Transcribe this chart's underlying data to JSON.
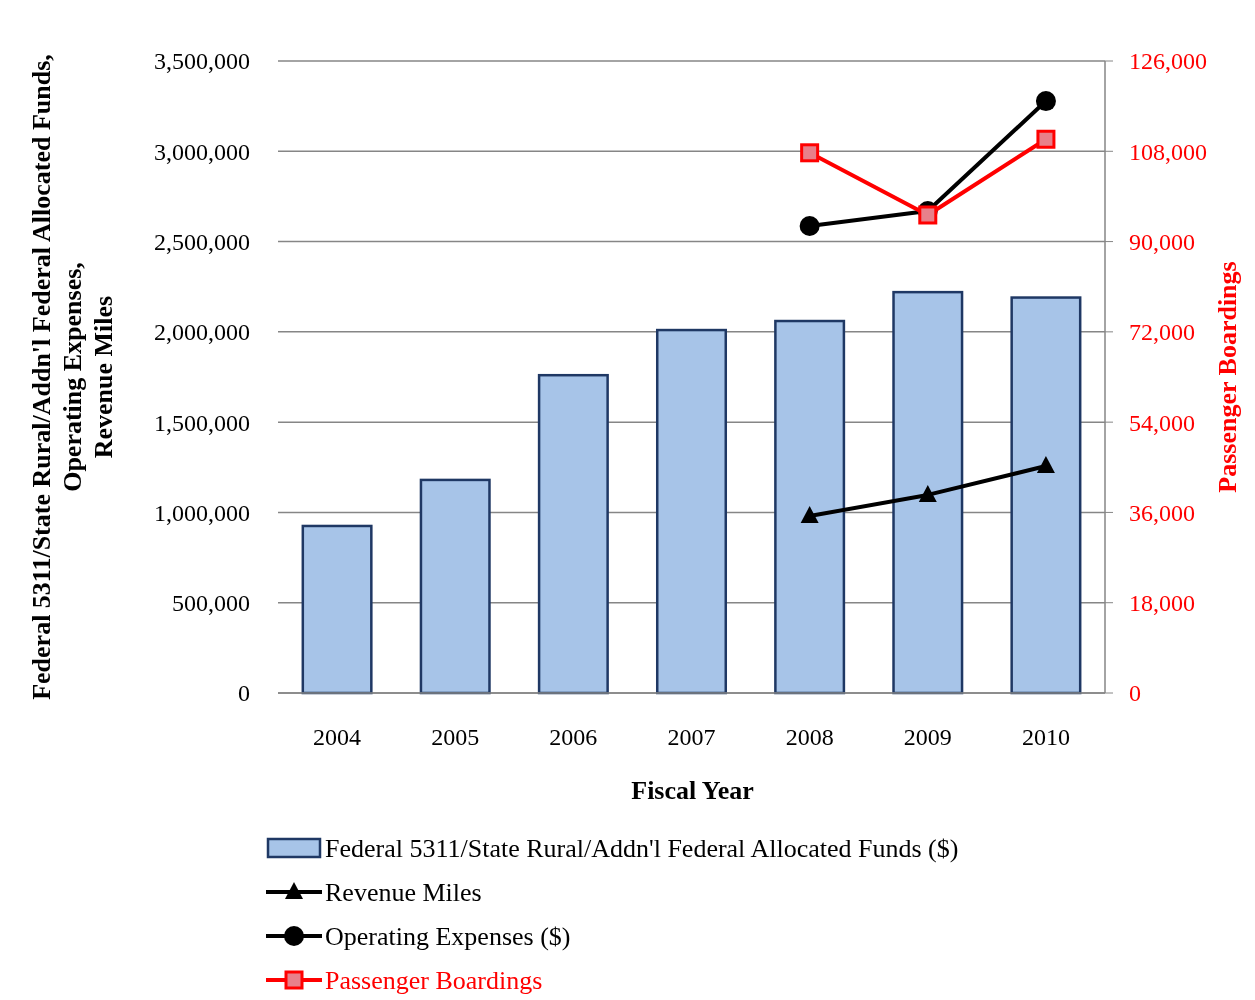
{
  "chart_data": {
    "type": "bar",
    "xlabel": "Fiscal Year",
    "ylabel": "Federal 5311/State Rural/Addn'l Federal Allocated Funds, Operating Expenses, Revenue Miles",
    "y2label": "Passenger Boardings",
    "categories": [
      "2004",
      "2005",
      "2006",
      "2007",
      "2008",
      "2009",
      "2010"
    ],
    "ylim": [
      0,
      3500000
    ],
    "yticks": [
      {
        "value": 0,
        "label": "0"
      },
      {
        "value": 500000,
        "label": "500,000"
      },
      {
        "value": 1000000,
        "label": "1,000,000"
      },
      {
        "value": 1500000,
        "label": "1,500,000"
      },
      {
        "value": 2000000,
        "label": "2,000,000"
      },
      {
        "value": 2500000,
        "label": "2,500,000"
      },
      {
        "value": 3000000,
        "label": "3,000,000"
      },
      {
        "value": 3500000,
        "label": "3,500,000"
      }
    ],
    "y2lim": [
      0,
      126000
    ],
    "y2ticks": [
      {
        "value": 0,
        "label": "0"
      },
      {
        "value": 18000,
        "label": "18,000"
      },
      {
        "value": 36000,
        "label": "36,000"
      },
      {
        "value": 54000,
        "label": "54,000"
      },
      {
        "value": 72000,
        "label": "72,000"
      },
      {
        "value": 90000,
        "label": "90,000"
      },
      {
        "value": 108000,
        "label": "108,000"
      },
      {
        "value": 126000,
        "label": "126,000"
      }
    ],
    "grid": "y",
    "legend": "bottom",
    "series": [
      {
        "name": "Federal 5311/State Rural/Addn'l Federal Allocated Funds ($)",
        "color": "#a7c4e8",
        "values": [
          925000,
          1180000,
          1760000,
          2010000,
          2060000,
          2220000,
          2190000
        ]
      },
      {
        "name": "Revenue Miles",
        "type": "line",
        "color": "#000000",
        "marker": "triangle",
        "values": [
          null,
          null,
          null,
          null,
          980000,
          1097000,
          1257000
        ]
      },
      {
        "name": "Operating Expenses ($)",
        "type": "line",
        "color": "#000000",
        "marker": "circle",
        "values": [
          null,
          null,
          null,
          null,
          2586000,
          2669000,
          3278000
        ]
      },
      {
        "name": "Passenger Boardings",
        "type": "line",
        "color": "#ff0000",
        "marker": "square",
        "axis": "y2",
        "values": [
          null,
          null,
          null,
          null,
          107700,
          95300,
          110400
        ]
      }
    ]
  }
}
